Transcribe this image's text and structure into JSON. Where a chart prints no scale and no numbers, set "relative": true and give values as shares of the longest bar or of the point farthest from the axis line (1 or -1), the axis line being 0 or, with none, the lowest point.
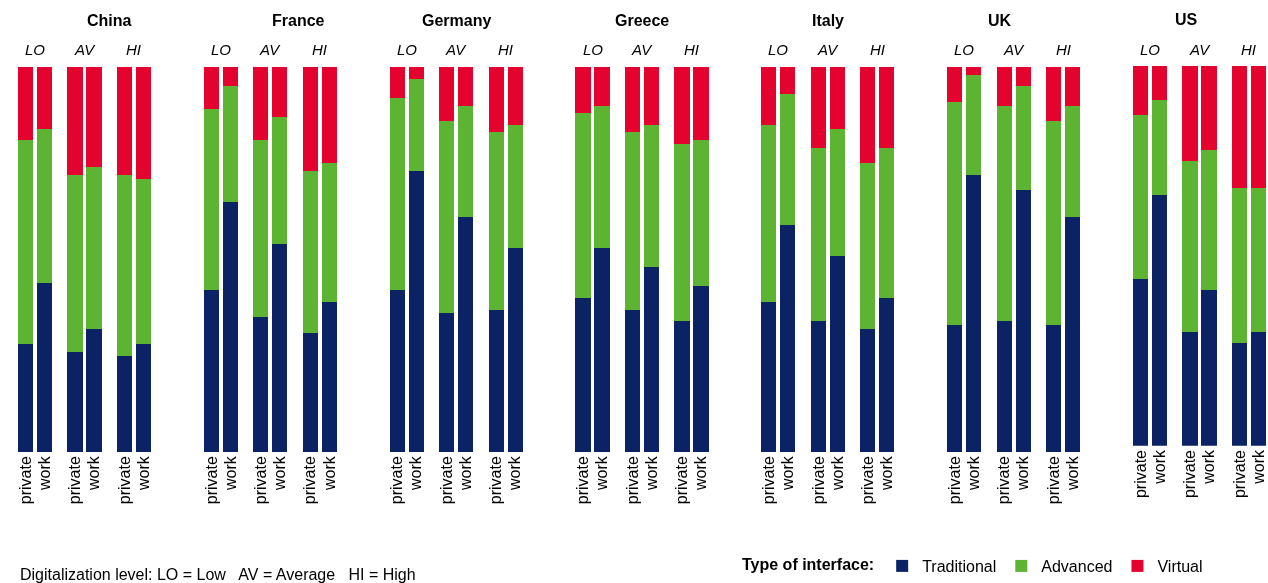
{
  "chart_data": [
    {
      "type": "bar",
      "title": "China",
      "relative": true,
      "stacked": true,
      "categories": [
        "private",
        "work",
        "private",
        "work",
        "private",
        "work"
      ],
      "annotations": [
        "LO",
        "AV",
        "HI",
        "Digitalization level: LO = Low   AV = Average   HI = High"
      ],
      "series": [
        {
          "color": "#0b2265",
          "values": [
            0.28,
            0.44,
            0.26,
            0.32,
            0.25,
            0.28
          ]
        },
        {
          "color": "#5db332",
          "values": [
            0.53,
            0.4,
            0.46,
            0.42,
            0.47,
            0.43
          ]
        },
        {
          "color": "#e4032e",
          "values": [
            0.19,
            0.16,
            0.28,
            0.26,
            0.28,
            0.29
          ]
        }
      ]
    },
    {
      "type": "bar",
      "title": "France",
      "relative": true,
      "stacked": true,
      "categories": [
        "private",
        "work",
        "private",
        "work",
        "private",
        "work"
      ],
      "annotations": [
        "LO",
        "AV",
        "HI"
      ],
      "series": [
        {
          "color": "#0b2265",
          "values": [
            0.42,
            0.65,
            0.35,
            0.54,
            0.31,
            0.39
          ]
        },
        {
          "color": "#5db332",
          "values": [
            0.47,
            0.3,
            0.46,
            0.33,
            0.42,
            0.36
          ]
        },
        {
          "color": "#e4032e",
          "values": [
            0.11,
            0.05,
            0.19,
            0.13,
            0.27,
            0.25
          ]
        }
      ]
    },
    {
      "type": "bar",
      "title": "Germany",
      "relative": true,
      "stacked": true,
      "categories": [
        "private",
        "work",
        "private",
        "work",
        "private",
        "work"
      ],
      "annotations": [
        "LO",
        "AV",
        "HI"
      ],
      "series": [
        {
          "color": "#0b2265",
          "values": [
            0.42,
            0.73,
            0.36,
            0.61,
            0.37,
            0.53
          ]
        },
        {
          "color": "#5db332",
          "values": [
            0.5,
            0.24,
            0.5,
            0.29,
            0.46,
            0.32
          ]
        },
        {
          "color": "#e4032e",
          "values": [
            0.08,
            0.03,
            0.14,
            0.1,
            0.17,
            0.15
          ]
        }
      ]
    },
    {
      "type": "bar",
      "title": "Greece",
      "relative": true,
      "stacked": true,
      "categories": [
        "private",
        "work",
        "private",
        "work",
        "private",
        "work"
      ],
      "annotations": [
        "LO",
        "AV",
        "HI"
      ],
      "series": [
        {
          "color": "#0b2265",
          "values": [
            0.4,
            0.53,
            0.37,
            0.48,
            0.34,
            0.43
          ]
        },
        {
          "color": "#5db332",
          "values": [
            0.48,
            0.37,
            0.46,
            0.37,
            0.46,
            0.38
          ]
        },
        {
          "color": "#e4032e",
          "values": [
            0.12,
            0.1,
            0.17,
            0.15,
            0.2,
            0.19
          ]
        }
      ]
    },
    {
      "type": "bar",
      "title": "Italy",
      "relative": true,
      "stacked": true,
      "categories": [
        "private",
        "work",
        "private",
        "work",
        "private",
        "work"
      ],
      "annotations": [
        "LO",
        "AV",
        "HI"
      ],
      "series": [
        {
          "color": "#0b2265",
          "values": [
            0.39,
            0.59,
            0.34,
            0.51,
            0.32,
            0.4
          ]
        },
        {
          "color": "#5db332",
          "values": [
            0.46,
            0.34,
            0.45,
            0.33,
            0.43,
            0.39
          ]
        },
        {
          "color": "#e4032e",
          "values": [
            0.15,
            0.07,
            0.21,
            0.16,
            0.25,
            0.21
          ]
        }
      ]
    },
    {
      "type": "bar",
      "title": "UK",
      "relative": true,
      "stacked": true,
      "categories": [
        "private",
        "work",
        "private",
        "work",
        "private",
        "work"
      ],
      "annotations": [
        "LO",
        "AV",
        "HI"
      ],
      "series": [
        {
          "color": "#0b2265",
          "values": [
            0.33,
            0.72,
            0.34,
            0.68,
            0.33,
            0.61
          ]
        },
        {
          "color": "#5db332",
          "values": [
            0.58,
            0.26,
            0.56,
            0.27,
            0.53,
            0.29
          ]
        },
        {
          "color": "#e4032e",
          "values": [
            0.09,
            0.02,
            0.1,
            0.05,
            0.14,
            0.1
          ]
        }
      ]
    },
    {
      "type": "bar",
      "title": "US",
      "relative": true,
      "stacked": true,
      "categories": [
        "private",
        "work",
        "private",
        "work",
        "private",
        "work"
      ],
      "annotations": [
        "LO",
        "AV",
        "HI"
      ],
      "legend": "bottom",
      "legend_title": "Type of interface:",
      "series": [
        {
          "name": "Traditional",
          "color": "#0b2265",
          "values": [
            0.44,
            0.66,
            0.3,
            0.41,
            0.27,
            0.3
          ]
        },
        {
          "name": "Advanced",
          "color": "#5db332",
          "values": [
            0.43,
            0.25,
            0.45,
            0.37,
            0.41,
            0.38
          ]
        },
        {
          "name": "Virtual",
          "color": "#e4032e",
          "values": [
            0.13,
            0.09,
            0.25,
            0.22,
            0.32,
            0.32
          ]
        }
      ]
    }
  ]
}
